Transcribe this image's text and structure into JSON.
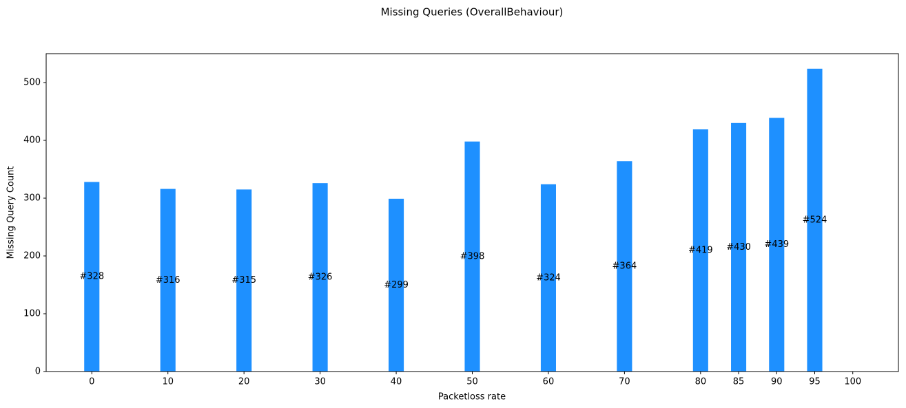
{
  "chart_data": {
    "type": "bar",
    "title": "Missing Queries (OverallBehaviour)",
    "x_label": "Packetloss rate",
    "y_label": "Missing Query Count",
    "x": [
      0,
      10,
      20,
      30,
      40,
      50,
      60,
      70,
      80,
      85,
      90,
      95
    ],
    "values": [
      328,
      316,
      315,
      326,
      299,
      398,
      324,
      364,
      419,
      430,
      439,
      524
    ],
    "value_labels": [
      "#328",
      "#316",
      "#315",
      "#326",
      "#299",
      "#398",
      "#324",
      "#364",
      "#419",
      "#430",
      "#439",
      "#524"
    ],
    "color": "#1e90ff",
    "xlim": [
      -6,
      106
    ],
    "xticks": [
      0,
      10,
      20,
      30,
      40,
      50,
      60,
      70,
      80,
      85,
      90,
      95,
      100
    ],
    "ylim": [
      0,
      550
    ],
    "yticks": [
      0,
      100,
      200,
      300,
      400,
      500
    ],
    "grid": false
  }
}
